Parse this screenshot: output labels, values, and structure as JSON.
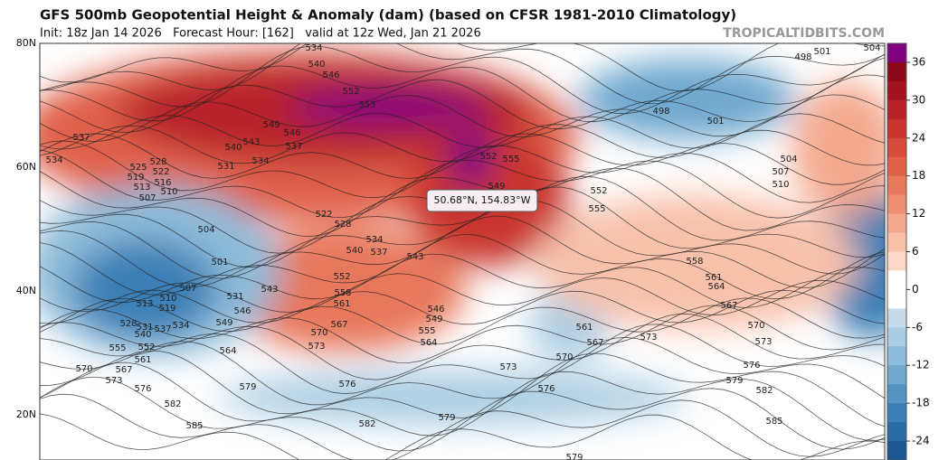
{
  "header": {
    "title": "GFS 500mb Geopotential Height & Anomaly (dam) (based on CFSR 1981-2010 Climatology)",
    "subtitle": "Init: 18z Jan 14 2026   Forecast Hour: [162]   valid at 12z Wed, Jan 21 2026",
    "watermark": "TROPICALTIDBITS.COM"
  },
  "map": {
    "latitude_labels": [
      "80N",
      "60N",
      "40N",
      "20N"
    ],
    "tooltip": "50.68°N, 154.83°W",
    "contour_labels": [
      "534",
      "540",
      "546",
      "552",
      "555",
      "549",
      "546",
      "543",
      "537",
      "540",
      "537",
      "534",
      "531",
      "534",
      "525",
      "528",
      "522",
      "519",
      "516",
      "513",
      "510",
      "507",
      "504",
      "501",
      "507",
      "513",
      "510",
      "519",
      "528",
      "531",
      "537",
      "534",
      "540",
      "555",
      "552",
      "561",
      "567",
      "570",
      "573",
      "576",
      "582",
      "585",
      "579",
      "576",
      "582",
      "579",
      "576",
      "573",
      "570",
      "567",
      "561",
      "564",
      "555",
      "549",
      "546",
      "543",
      "537",
      "540",
      "534",
      "528",
      "522",
      "552",
      "558",
      "561",
      "567",
      "570",
      "573",
      "564",
      "549",
      "546",
      "543",
      "531",
      "552",
      "555",
      "558",
      "561",
      "564",
      "567",
      "570",
      "573",
      "573",
      "576",
      "579",
      "582",
      "585",
      "579",
      "501",
      "498",
      "504",
      "498",
      "501",
      "504",
      "507",
      "510",
      "555",
      "552",
      "549"
    ]
  },
  "colorbar": {
    "lim": [
      -27,
      39
    ],
    "ticks": [
      36,
      30,
      24,
      18,
      12,
      6,
      0,
      -6,
      -12,
      -18,
      -24
    ],
    "colors": [
      "#800080",
      "#8b0a1a",
      "#a3131f",
      "#b8202a",
      "#c9352e",
      "#d64b3c",
      "#e0614a",
      "#e8785c",
      "#ef9074",
      "#f4a98e",
      "#f8c1aa",
      "#fbd8c7",
      "#ffffff",
      "#ffffff",
      "#c6dcea",
      "#aacde3",
      "#8dbbd9",
      "#70a8cf",
      "#5394c3",
      "#3b7fb6",
      "#2a6aa5",
      "#1d5590"
    ]
  }
}
